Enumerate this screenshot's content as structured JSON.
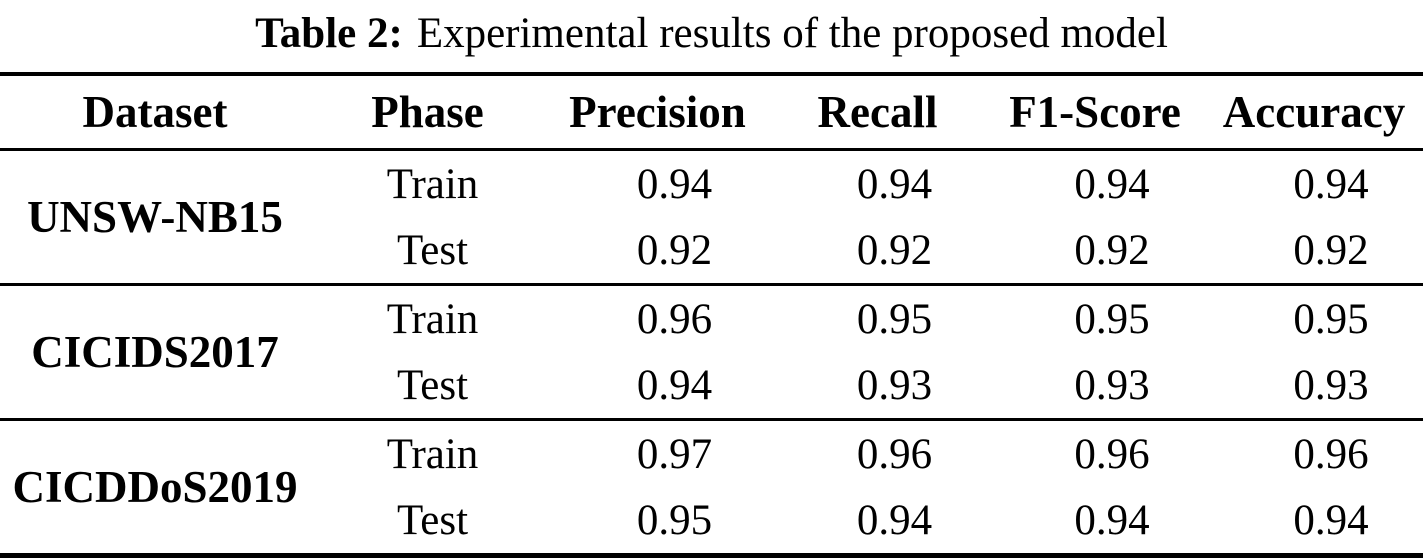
{
  "caption": {
    "label": "Table 2:",
    "text": "Experimental results of the proposed model"
  },
  "table": {
    "headers": [
      "Dataset",
      "Phase",
      "Precision",
      "Recall",
      "F1-Score",
      "Accuracy"
    ],
    "groups": [
      {
        "dataset": "UNSW-NB15",
        "rows": [
          {
            "phase": "Train",
            "values": [
              "0.94",
              "0.94",
              "0.94",
              "0.94"
            ]
          },
          {
            "phase": "Test",
            "values": [
              "0.92",
              "0.92",
              "0.92",
              "0.92"
            ]
          }
        ]
      },
      {
        "dataset": "CICIDS2017",
        "rows": [
          {
            "phase": "Train",
            "values": [
              "0.96",
              "0.95",
              "0.95",
              "0.95"
            ]
          },
          {
            "phase": "Test",
            "values": [
              "0.94",
              "0.93",
              "0.93",
              "0.93"
            ]
          }
        ]
      },
      {
        "dataset": "CICDDoS2019",
        "rows": [
          {
            "phase": "Train",
            "values": [
              "0.97",
              "0.96",
              "0.96",
              "0.96"
            ]
          },
          {
            "phase": "Test",
            "values": [
              "0.95",
              "0.94",
              "0.94",
              "0.94"
            ]
          }
        ]
      }
    ]
  },
  "colors": {
    "text": "#000000",
    "background": "#ffffff",
    "rule": "#000000"
  }
}
